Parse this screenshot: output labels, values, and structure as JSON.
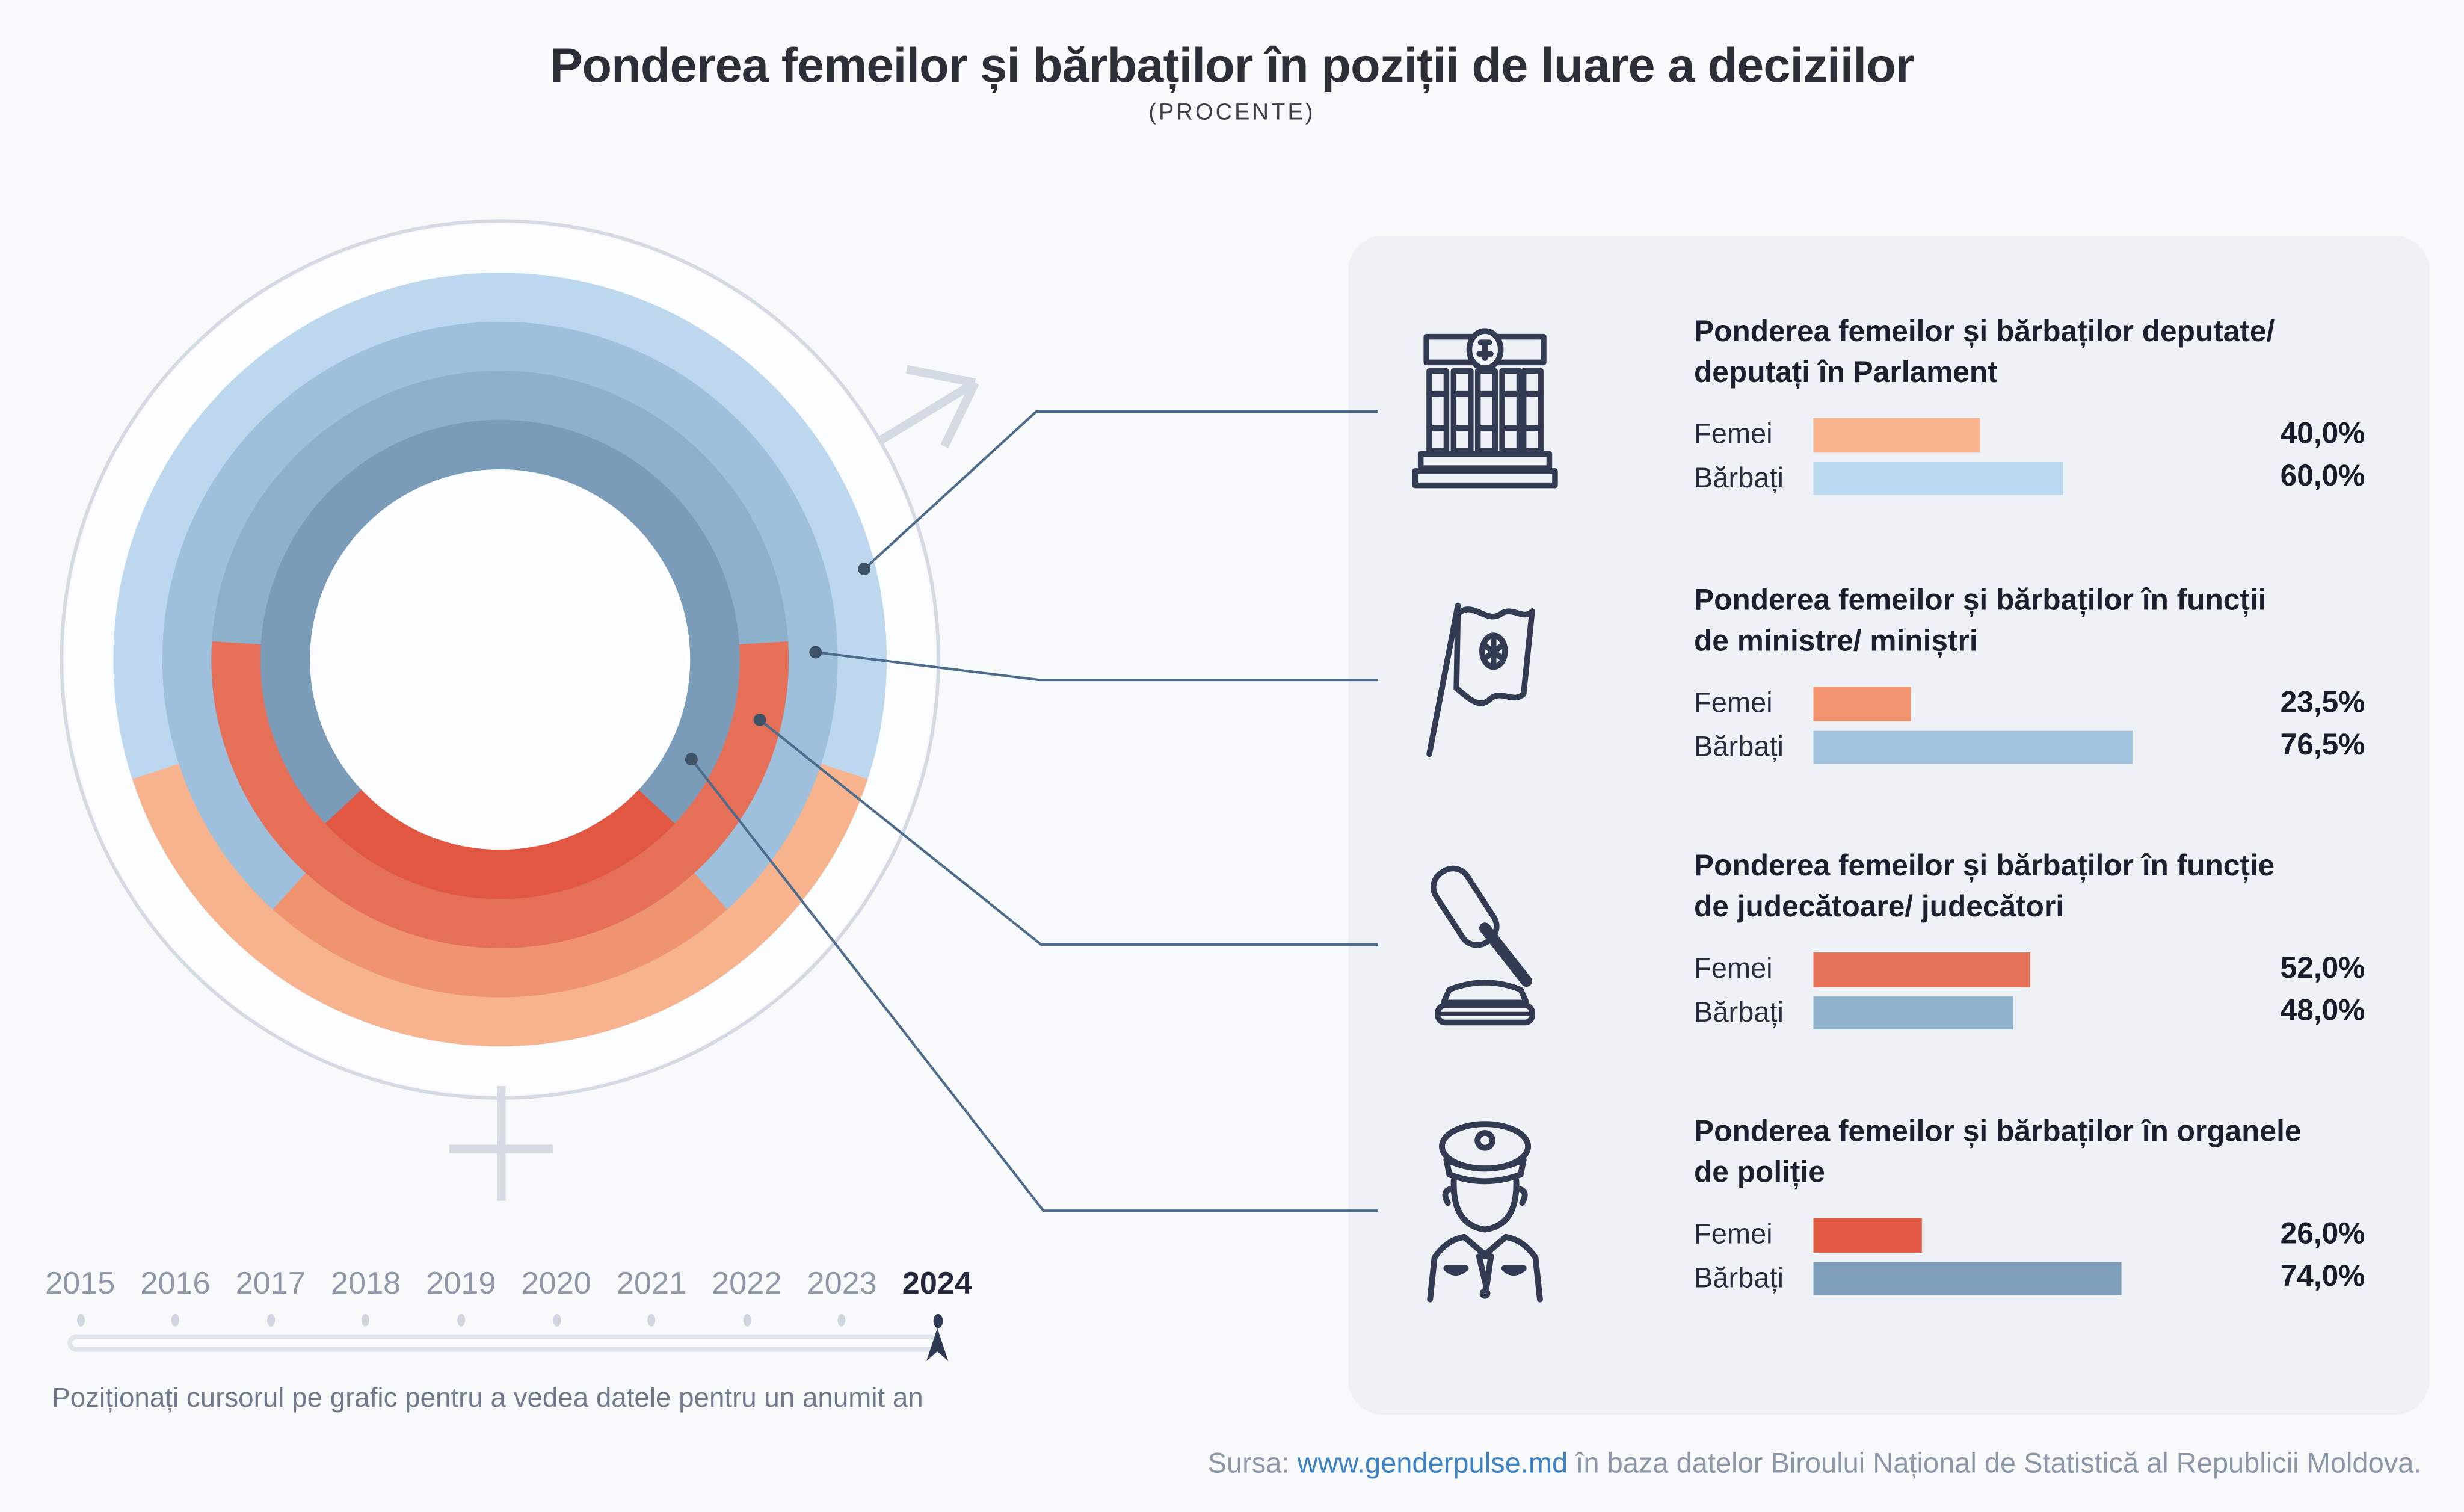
{
  "title": "Ponderea femeilor și bărbaților în poziții de luare a deciziilor",
  "subtitle": "(PROCENTE)",
  "chart_data": {
    "type": "donut",
    "year_shown": "2024",
    "rings_order": "outer_to_inner",
    "legend": {
      "women": "Femei",
      "men": "Bărbați"
    },
    "rings": [
      {
        "category": "Deputate/ deputați în Parlament",
        "women_pct": 40.0,
        "men_pct": 60.0,
        "women_color": "#f7b28e",
        "men_color": "#bdd8ee"
      },
      {
        "category": "Funcții de ministre/ miniștri",
        "women_pct": 23.5,
        "men_pct": 76.5,
        "women_color": "#f0946f",
        "men_color": "#9ec0dc"
      },
      {
        "category": "Funcție de judecătoare/ judecători",
        "women_pct": 52.0,
        "men_pct": 48.0,
        "women_color": "#e66f57",
        "men_color": "#8db0cb"
      },
      {
        "category": "Organele de poliție",
        "women_pct": 26.0,
        "men_pct": 74.0,
        "women_color": "#e15742",
        "men_color": "#7b9cb9"
      }
    ],
    "annotation_symbols": [
      "male-arrow",
      "female-cross"
    ],
    "outline_color": "#d3dae3",
    "connector_color": "#4d6c8b"
  },
  "panel": {
    "sections": [
      {
        "icon": "parliament-building-icon",
        "title_line1": "Ponderea femeilor și bărbaților deputate/",
        "title_line2": "deputați în Parlament",
        "rows": [
          {
            "label": "Femei",
            "pct": 40.0,
            "value": "40,0%",
            "color": "#f9b38d"
          },
          {
            "label": "Bărbați",
            "pct": 60.0,
            "value": "60,0%",
            "color": "#bedaf0"
          }
        ]
      },
      {
        "icon": "moldova-flag-icon",
        "title_line1": "Ponderea femeilor și bărbaților în funcții",
        "title_line2": "de ministre/ miniștri",
        "rows": [
          {
            "label": "Femei",
            "pct": 23.5,
            "value": "23,5%",
            "color": "#f29470"
          },
          {
            "label": "Bărbați",
            "pct": 76.5,
            "value": "76,5%",
            "color": "#a2c3df"
          }
        ]
      },
      {
        "icon": "gavel-icon",
        "title_line1": "Ponderea femeilor și bărbaților în funcție",
        "title_line2": "de judecătoare/ judecători",
        "rows": [
          {
            "label": "Femei",
            "pct": 52.0,
            "value": "52,0%",
            "color": "#e7735a"
          },
          {
            "label": "Bărbați",
            "pct": 48.0,
            "value": "48,0%",
            "color": "#90b2cc"
          }
        ]
      },
      {
        "icon": "police-officer-icon",
        "title_line1": "Ponderea femeilor și bărbaților în organele",
        "title_line2": "de poliție",
        "rows": [
          {
            "label": "Femei",
            "pct": 26.0,
            "value": "26,0%",
            "color": "#e25944"
          },
          {
            "label": "Bărbați",
            "pct": 74.0,
            "value": "74,0%",
            "color": "#7f9fbc"
          }
        ]
      }
    ]
  },
  "timeline": {
    "years": [
      "2015",
      "2016",
      "2017",
      "2018",
      "2019",
      "2020",
      "2021",
      "2022",
      "2023",
      "2024"
    ],
    "active_year": "2024",
    "hint": "Poziționați cursorul pe grafic pentru a vedea datele pentru un anumit an"
  },
  "footer": {
    "prefix": "Sursa:",
    "link": "www.genderpulse.md",
    "suffix": "în baza datelor Biroului Național de Statistică al Republicii Moldova."
  },
  "colors": {
    "page_bg": "#f8f9fb",
    "panel_bg": "#eef1f5",
    "disc": "#fcfdfe",
    "gender_symbol": "#d3dae3",
    "connector": "#4d6c8b",
    "connector_dot": "#3d5167",
    "pointer": "#2d3852"
  }
}
